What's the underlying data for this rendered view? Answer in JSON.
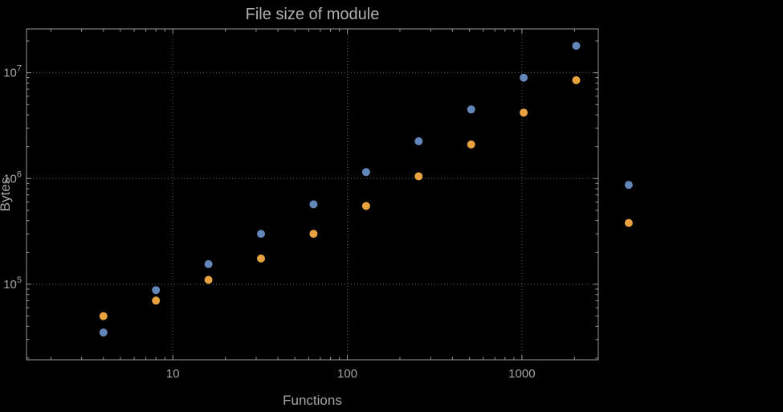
{
  "colors": {
    "background": "#000000",
    "frame": "#9a9a9a",
    "grid": "#5f5f5f",
    "text": "#a6a6a6",
    "title": "#b0b0b0",
    "series_blue": "#6286b9",
    "series_orange": "#e8a33e"
  },
  "chart_data": {
    "type": "scatter",
    "title": "File size of module",
    "xlabel": "Functions",
    "ylabel": "Bytes",
    "xscale": "log",
    "yscale": "log",
    "xlim": [
      1.45,
      2740
    ],
    "ylim": [
      19300,
      26000000
    ],
    "grid": "dotted-major",
    "legend": "none",
    "x": [
      4,
      8,
      16,
      32,
      64,
      128,
      256,
      512,
      1024,
      2048,
      4096
    ],
    "series": [
      {
        "name": "blue",
        "color": "#6286b9",
        "values": [
          35000,
          88000,
          155000,
          300000,
          570000,
          1150000,
          2250000,
          4500000,
          9000000,
          18000000,
          870000
        ]
      },
      {
        "name": "orange",
        "color": "#e8a33e",
        "values": [
          50000,
          70000,
          110000,
          175000,
          300000,
          550000,
          1050000,
          2100000,
          4200000,
          8500000,
          380000
        ]
      }
    ],
    "x_major_ticks": [
      10,
      100,
      1000
    ],
    "x_tick_labels": [
      "10",
      "100",
      "1000"
    ],
    "y_major_ticks": [
      100000,
      1000000,
      10000000
    ],
    "y_tick_labels": [
      "10^5",
      "10^6",
      "10^7"
    ]
  }
}
